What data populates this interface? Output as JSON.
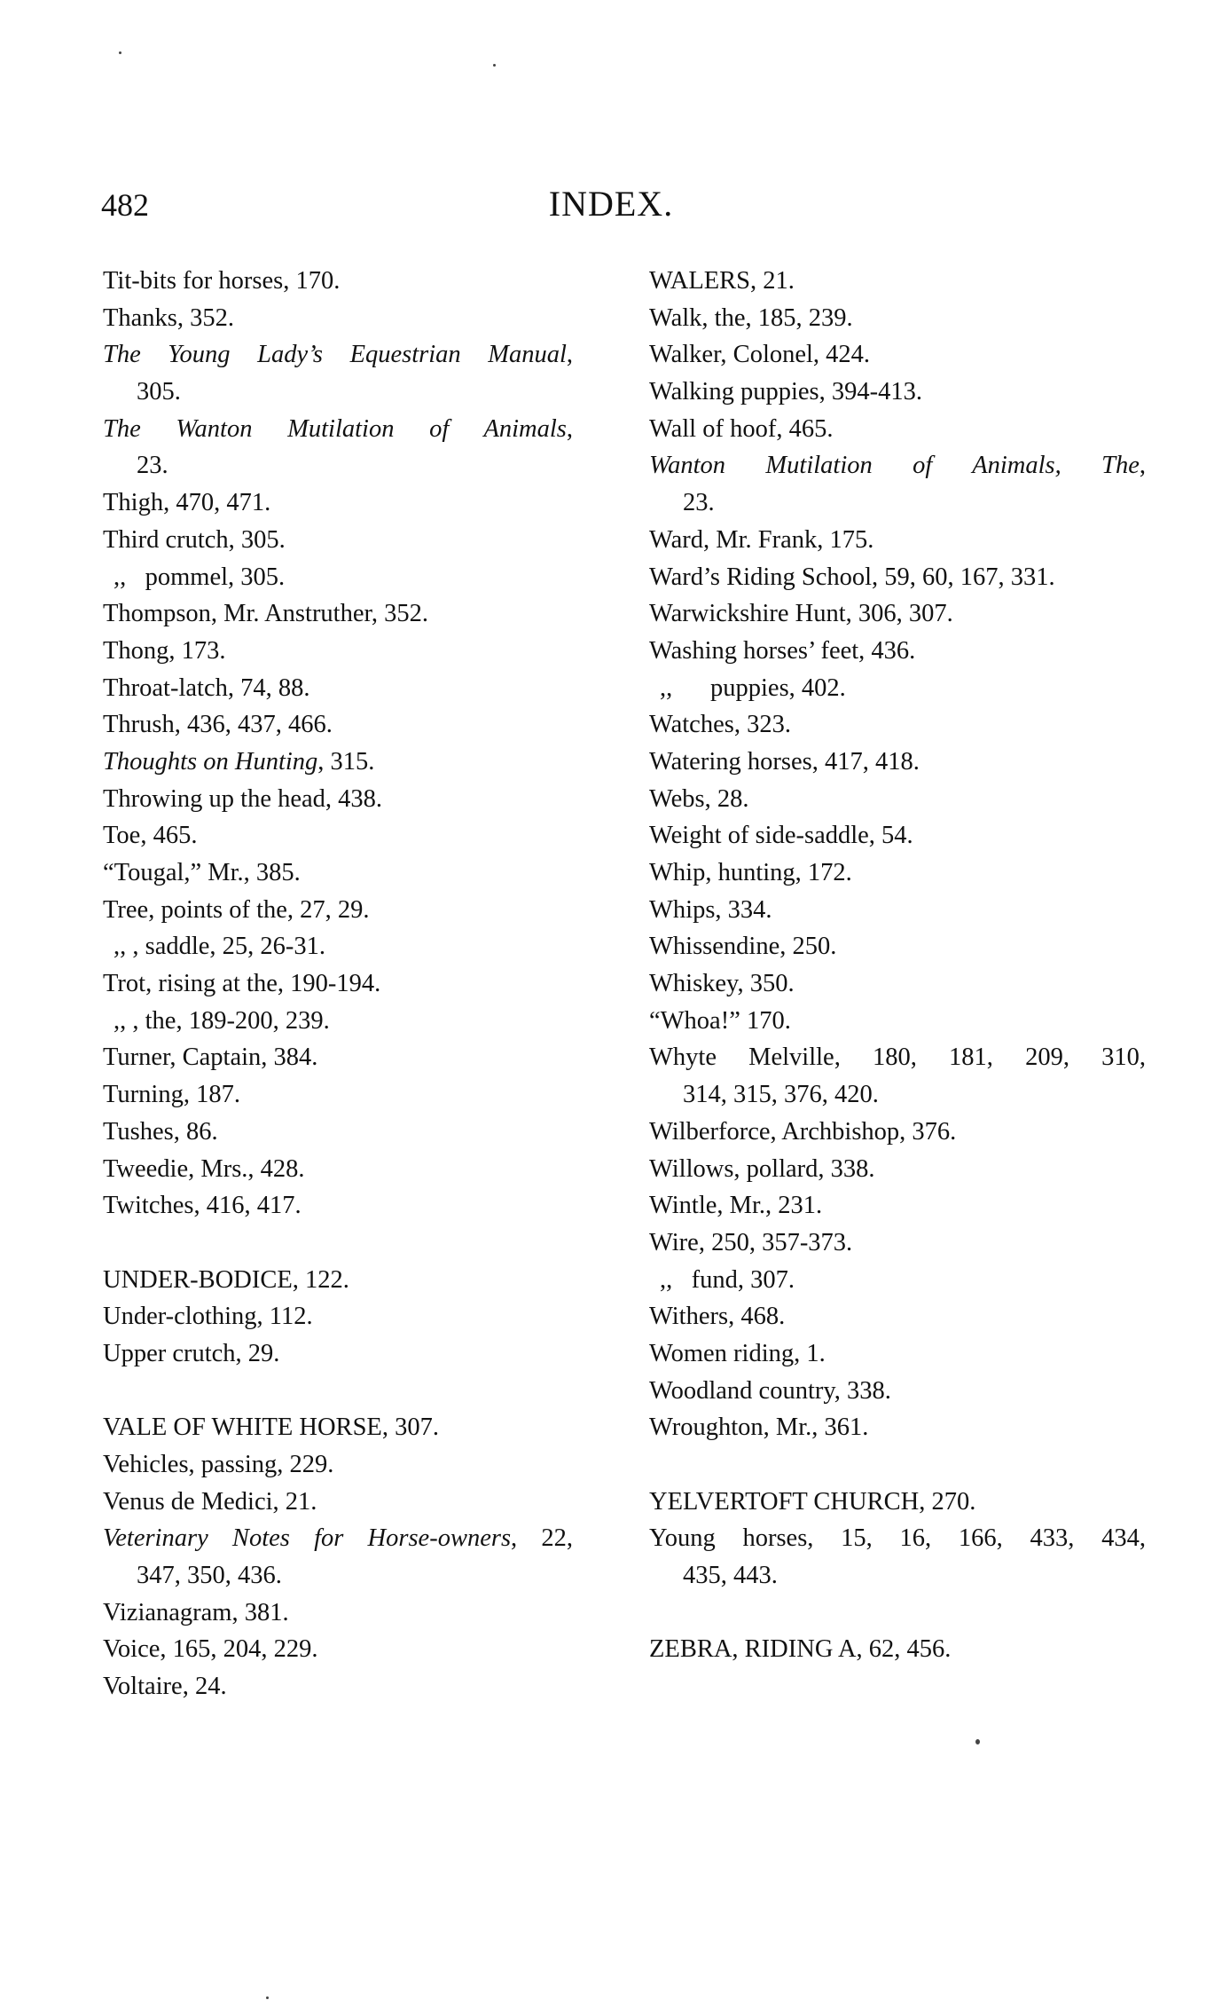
{
  "header": {
    "page_number": "482",
    "title": "INDEX."
  },
  "columns": [
    [
      {
        "t": "Tit-bits for horses, 170."
      },
      {
        "t": "Thanks, 352."
      },
      {
        "i": "The Young Lady’s Equestrian Manual",
        "t": ",",
        "justify": true
      },
      {
        "t": "305.",
        "indent": 1
      },
      {
        "i": "The Wanton Mutilation of Animals",
        "t": ",",
        "justify": true
      },
      {
        "t": "23.",
        "indent": 1
      },
      {
        "t": "Thigh, 470, 471."
      },
      {
        "t": "Third crutch, 305."
      },
      {
        "t": ",,   pommel, 305.",
        "indent": 2
      },
      {
        "t": "Thompson, Mr. Anstruther, 352."
      },
      {
        "t": "Thong, 173."
      },
      {
        "t": "Throat-latch, 74, 88."
      },
      {
        "t": "Thrush, 436, 437, 466."
      },
      {
        "i": "Thoughts on Hunting",
        "t": ", 315."
      },
      {
        "t": "Throwing up the head, 438."
      },
      {
        "t": "Toe, 465."
      },
      {
        "t": "“Tougal,” Mr., 385."
      },
      {
        "t": "Tree, points of the, 27, 29."
      },
      {
        "t": ",, , saddle, 25, 26-31.",
        "indent": 2
      },
      {
        "t": "Trot, rising at the, 190-194."
      },
      {
        "t": ",, , the, 189-200, 239.",
        "indent": 2
      },
      {
        "t": "Turner, Captain, 384."
      },
      {
        "t": "Turning, 187."
      },
      {
        "t": "Tushes, 86."
      },
      {
        "t": "Tweedie, Mrs., 428."
      },
      {
        "t": "Twitches, 416, 417."
      },
      {
        "t": ""
      },
      {
        "t": "UNDER-BODICE, 122."
      },
      {
        "t": "Under-clothing, 112."
      },
      {
        "t": "Upper crutch, 29."
      },
      {
        "t": ""
      },
      {
        "t": "VALE OF WHITE HORSE, 307."
      },
      {
        "t": "Vehicles, passing, 229."
      },
      {
        "t": "Venus de Medici, 21."
      },
      {
        "i": "Veterinary Notes for Horse-owners",
        "t": ", 22,",
        "justify": true
      },
      {
        "t": "347, 350, 436.",
        "indent": 1
      },
      {
        "t": "Vizianagram, 381."
      },
      {
        "t": "Voice, 165, 204, 229."
      },
      {
        "t": "Voltaire, 24."
      }
    ],
    [
      {
        "t": "WALERS, 21."
      },
      {
        "t": "Walk, the, 185, 239."
      },
      {
        "t": "Walker, Colonel, 424."
      },
      {
        "t": "Walking puppies, 394-413."
      },
      {
        "t": "Wall of hoof, 465."
      },
      {
        "i": "Wanton Mutilation of Animals, The",
        "t": ",",
        "justify": true
      },
      {
        "t": "23.",
        "indent": 1
      },
      {
        "t": "Ward, Mr. Frank, 175."
      },
      {
        "t": "Ward’s Riding School, 59, 60, 167, 331."
      },
      {
        "t": "Warwickshire Hunt, 306, 307."
      },
      {
        "t": "Washing horses’ feet, 436."
      },
      {
        "t": ",,      puppies, 402.",
        "indent": 2
      },
      {
        "t": "Watches, 323."
      },
      {
        "t": "Watering horses, 417, 418."
      },
      {
        "t": "Webs, 28."
      },
      {
        "t": "Weight of side-saddle, 54."
      },
      {
        "t": "Whip, hunting, 172."
      },
      {
        "t": "Whips, 334."
      },
      {
        "t": "Whissendine, 250."
      },
      {
        "t": "Whiskey, 350."
      },
      {
        "t": "“Whoa!” 170."
      },
      {
        "t": "Whyte Melville, 180, 181, 209, 310,",
        "justify": true
      },
      {
        "t": "314, 315, 376, 420.",
        "indent": 1
      },
      {
        "t": "Wilberforce, Archbishop, 376."
      },
      {
        "t": "Willows, pollard, 338."
      },
      {
        "t": "Wintle, Mr., 231."
      },
      {
        "t": "Wire, 250, 357-373."
      },
      {
        "t": ",,   fund, 307.",
        "indent": 2
      },
      {
        "t": "Withers, 468."
      },
      {
        "t": "Women riding, 1."
      },
      {
        "t": "Woodland country, 338."
      },
      {
        "t": "Wroughton, Mr., 361."
      },
      {
        "t": ""
      },
      {
        "t": "YELVERTOFT CHURCH, 270."
      },
      {
        "t": "Young horses, 15, 16, 166, 433, 434,",
        "justify": true
      },
      {
        "t": "435, 443.",
        "indent": 1
      },
      {
        "t": ""
      },
      {
        "t": "ZEBRA, RIDING A, 62, 456."
      }
    ]
  ]
}
